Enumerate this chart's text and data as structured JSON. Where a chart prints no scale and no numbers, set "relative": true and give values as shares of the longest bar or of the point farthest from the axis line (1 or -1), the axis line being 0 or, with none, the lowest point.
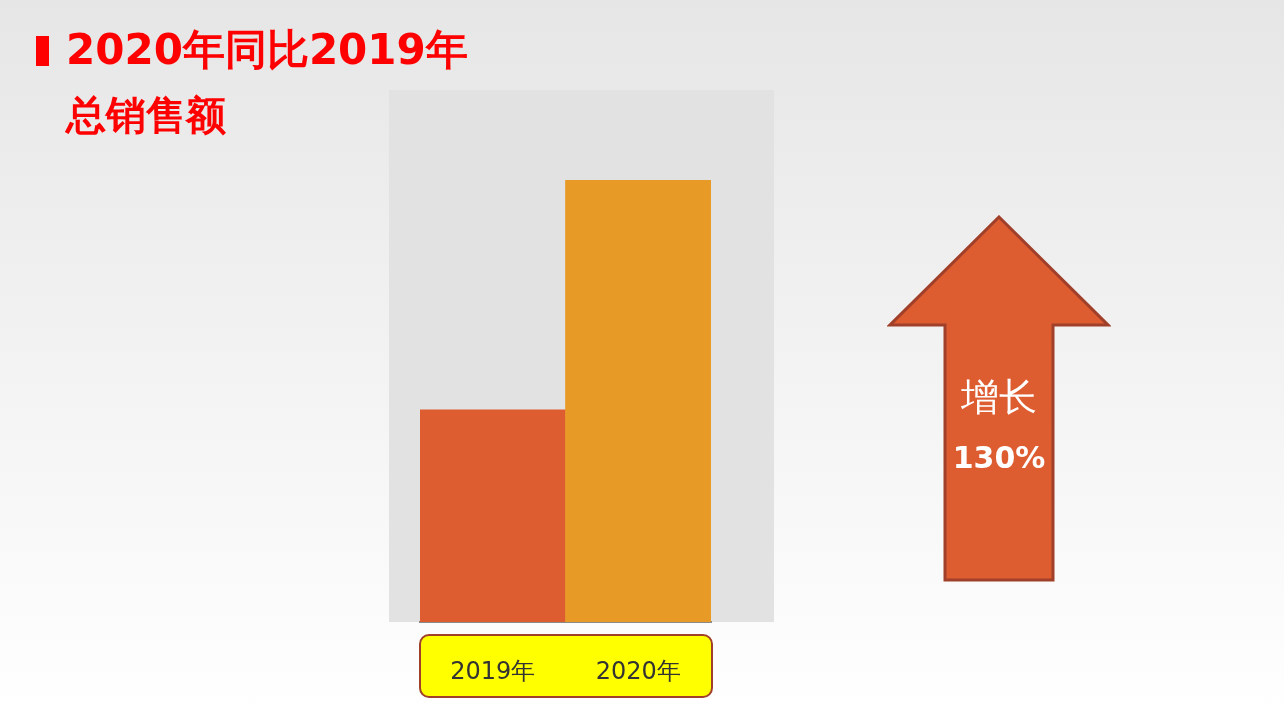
{
  "chart_data": {
    "type": "bar",
    "title": "2020年同比2019年",
    "subtitle": "总销售额",
    "categories": [
      "2019年",
      "2020年"
    ],
    "values": [
      0.48,
      1
    ],
    "colors": [
      "#dd5c30",
      "#e89a26"
    ],
    "relative": true,
    "annotations": [
      "增长",
      "130%"
    ]
  }
}
